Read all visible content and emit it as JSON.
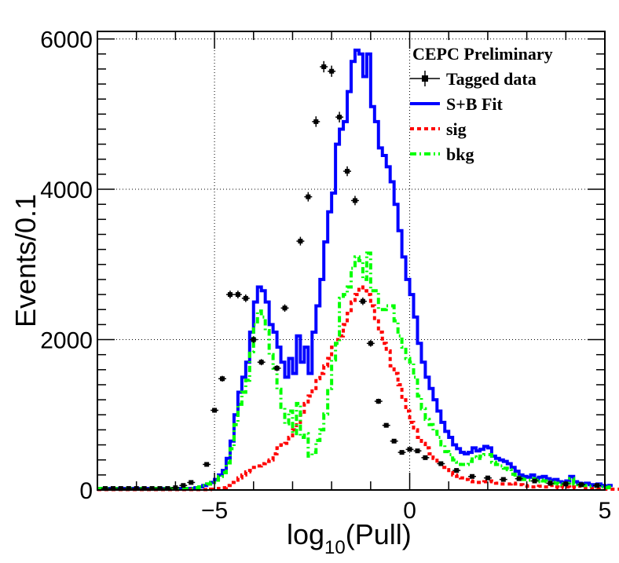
{
  "chart_data": {
    "type": "line",
    "xlabel_base": "log",
    "xlabel_sub": "10",
    "xlabel_rest": "(Pull)",
    "ylabel": "Events/0.1",
    "xlim": [
      -8,
      5
    ],
    "ylim": [
      0,
      6100
    ],
    "x_tick_labels": [
      {
        "value": -5,
        "label": "−5"
      },
      {
        "value": 0,
        "label": "0"
      },
      {
        "value": 5,
        "label": "5"
      }
    ],
    "y_tick_labels": [
      {
        "value": 0,
        "label": "0"
      },
      {
        "value": 2000,
        "label": "2000"
      },
      {
        "value": 4000,
        "label": "4000"
      },
      {
        "value": 6000,
        "label": "6000"
      }
    ],
    "grid": true,
    "legend_title": "CEPC Preliminary",
    "legend_position": "top-right",
    "bins": {
      "start": -8.0,
      "width": 0.1,
      "series": [
        {
          "name": "S+B Fit",
          "color": "#0000ff",
          "dash": "none",
          "values": [
            20,
            20,
            20,
            20,
            20,
            20,
            20,
            20,
            20,
            20,
            20,
            20,
            20,
            20,
            20,
            20,
            20,
            20,
            20,
            20,
            20,
            20,
            20,
            20,
            20,
            30,
            40,
            60,
            80,
            100,
            140,
            200,
            260,
            420,
            650,
            1000,
            1300,
            1500,
            1700,
            2100,
            2500,
            2700,
            2650,
            2500,
            2200,
            2100,
            1900,
            1700,
            1500,
            1750,
            1550,
            2050,
            1700,
            1900,
            1550,
            2100,
            2450,
            2800,
            3300,
            3700,
            3950,
            4600,
            4800,
            4900,
            5300,
            5700,
            5850,
            5800,
            5500,
            5800,
            5100,
            4900,
            4550,
            4450,
            4300,
            4100,
            3800,
            3450,
            3100,
            2800,
            2600,
            2300,
            1950,
            1700,
            1500,
            1350,
            1200,
            1050,
            900,
            780,
            700,
            600,
            550,
            500,
            480,
            500,
            560,
            520,
            540,
            580,
            560,
            450,
            420,
            400,
            380,
            350,
            300,
            250,
            200,
            180,
            170,
            200,
            150,
            170,
            180,
            150,
            130,
            140,
            110,
            100,
            120,
            180,
            110,
            90,
            80,
            90,
            70,
            60,
            80,
            60,
            50,
            60
          ]
        },
        {
          "name": "sig",
          "color": "#ff0000",
          "dash": "5,4",
          "values": [
            5,
            5,
            5,
            5,
            5,
            5,
            5,
            5,
            5,
            5,
            5,
            5,
            5,
            5,
            5,
            5,
            5,
            5,
            5,
            5,
            5,
            5,
            5,
            5,
            5,
            5,
            5,
            5,
            5,
            10,
            10,
            20,
            30,
            60,
            100,
            130,
            160,
            200,
            240,
            260,
            300,
            320,
            350,
            380,
            400,
            480,
            560,
            600,
            620,
            700,
            800,
            900,
            1000,
            1150,
            1250,
            1350,
            1480,
            1550,
            1650,
            1750,
            1900,
            2000,
            2050,
            2200,
            2350,
            2500,
            2600,
            2700,
            2650,
            2600,
            2450,
            2250,
            2100,
            1950,
            1850,
            1650,
            1550,
            1400,
            1200,
            1050,
            900,
            800,
            700,
            620,
            560,
            480,
            420,
            350,
            300,
            270,
            230,
            200,
            180,
            160,
            140,
            120,
            110,
            100,
            100,
            110,
            120,
            110,
            90,
            80,
            80,
            80,
            90,
            80,
            70,
            60,
            50,
            40,
            40,
            50,
            40,
            40,
            60,
            40,
            30,
            50,
            40,
            30,
            40,
            50,
            30,
            25,
            20,
            20,
            15,
            15,
            10,
            10,
            10,
            10
          ]
        },
        {
          "name": "bkg",
          "color": "#00ff00",
          "dash": "8,4,2,4",
          "values": [
            20,
            20,
            20,
            20,
            20,
            20,
            20,
            20,
            20,
            20,
            20,
            20,
            20,
            20,
            20,
            20,
            20,
            20,
            20,
            20,
            20,
            20,
            20,
            20,
            20,
            30,
            40,
            60,
            80,
            100,
            130,
            180,
            230,
            360,
            550,
            870,
            1140,
            1300,
            1460,
            1840,
            2200,
            2380,
            2300,
            2120,
            1800,
            1620,
            1340,
            1100,
            880,
            1050,
            750,
            1150,
            700,
            750,
            450,
            500,
            660,
            800,
            1010,
            1350,
            1730,
            1950,
            2550,
            2600,
            2700,
            2950,
            3100,
            3050,
            2800,
            3150,
            2650,
            2650,
            2400,
            2400,
            2450,
            2450,
            2250,
            2050,
            1900,
            1750,
            1700,
            1500,
            1250,
            1080,
            940,
            870,
            780,
            700,
            600,
            510,
            470,
            400,
            370,
            340,
            340,
            380,
            440,
            420,
            450,
            470,
            470,
            370,
            340,
            320,
            290,
            270,
            210,
            170,
            150,
            140,
            130,
            150,
            110,
            130,
            120,
            110,
            100,
            90,
            80,
            70,
            90,
            150,
            80,
            70,
            60,
            60,
            50,
            50,
            60,
            40,
            30,
            40
          ]
        }
      ]
    },
    "data_series": {
      "name": "Tagged data",
      "color": "#000000",
      "x": [
        -5.2,
        -5.0,
        -4.8,
        -4.6,
        -4.4,
        -4.2,
        -4.0,
        -3.8,
        -3.4,
        -3.2,
        -2.8,
        -2.6,
        -2.4,
        -2.2,
        -2.0,
        -1.8,
        -1.6,
        -1.4,
        -1.2,
        -1.0,
        -0.8,
        -0.6,
        -0.4,
        -0.2,
        0.0,
        0.2,
        0.4,
        0.8,
        1.2,
        1.6,
        2.0,
        2.4,
        2.8,
        3.2,
        3.6,
        4.0,
        4.4,
        4.8,
        -7.8,
        -7.6,
        -7.4,
        -7.2,
        -7.0,
        -6.8,
        -6.6,
        -6.4,
        -6.2,
        -6.0,
        -5.8,
        -5.6
      ],
      "y": [
        340,
        1060,
        1480,
        2600,
        2600,
        2550,
        2000,
        1700,
        1620,
        2420,
        3310,
        3900,
        4900,
        5630,
        5570,
        4960,
        4240,
        3850,
        2510,
        1950,
        1180,
        860,
        650,
        500,
        540,
        520,
        430,
        350,
        260,
        180,
        160,
        140,
        150,
        120,
        90,
        80,
        70,
        60,
        20,
        20,
        20,
        20,
        20,
        20,
        20,
        20,
        20,
        30,
        60,
        100
      ]
    }
  }
}
